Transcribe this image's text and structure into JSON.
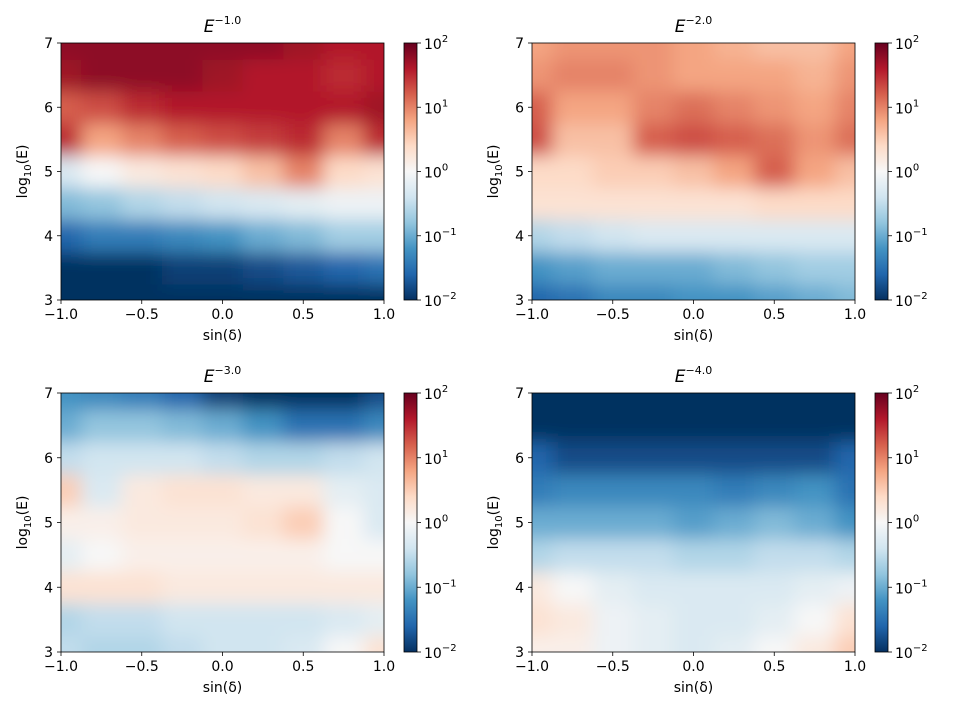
{
  "chart_data": [
    {
      "type": "heatmap",
      "title": {
        "base": "E",
        "exponent": "−1.0"
      },
      "xlabel": "sin(δ)",
      "ylabel": {
        "base": "log",
        "subscript": "10",
        "rest": "(E)"
      },
      "x": [
        -1,
        -0.75,
        -0.5,
        -0.25,
        0,
        0.25,
        0.5,
        0.75,
        1
      ],
      "y": [
        3,
        3.5,
        4,
        4.5,
        5,
        5.5,
        6,
        6.5,
        7
      ],
      "z": [
        [
          0.01,
          0.01,
          0.01,
          0.01,
          0.01,
          0.01,
          0.01,
          0.01,
          0.01
        ],
        [
          0.01,
          0.01,
          0.01,
          0.013,
          0.013,
          0.016,
          0.02,
          0.025,
          0.032
        ],
        [
          0.025,
          0.04,
          0.04,
          0.05,
          0.063,
          0.1,
          0.13,
          0.2,
          0.2
        ],
        [
          0.13,
          0.16,
          0.25,
          0.32,
          0.4,
          0.5,
          0.63,
          0.79,
          0.79
        ],
        [
          0.5,
          1,
          1.6,
          2,
          2.5,
          4,
          10,
          2.5,
          2
        ],
        [
          32,
          6.3,
          10,
          16,
          20,
          25,
          32,
          10,
          32
        ],
        [
          16,
          20,
          32,
          40,
          40,
          40,
          40,
          40,
          50
        ],
        [
          50,
          63,
          63,
          63,
          50,
          40,
          40,
          32,
          40
        ],
        [
          63,
          63,
          63,
          63,
          63,
          63,
          50,
          40,
          40
        ]
      ],
      "xlim": [
        -1,
        1
      ],
      "ylim": [
        3,
        7
      ],
      "xticks": [
        {
          "value": -1,
          "label": "−1.0"
        },
        {
          "value": -0.5,
          "label": "−0.5"
        },
        {
          "value": 0,
          "label": "0.0"
        },
        {
          "value": 0.5,
          "label": "0.5"
        },
        {
          "value": 1,
          "label": "1.0"
        }
      ],
      "yticks": [
        3,
        4,
        5,
        6,
        7
      ],
      "colorbar": {
        "lim": [
          0.01,
          100
        ],
        "log": true,
        "colormap": "RdBu_r",
        "ticks": [
          {
            "value": 0.01,
            "label": "10",
            "exponent": "−2"
          },
          {
            "value": 0.1,
            "label": "10",
            "exponent": "−1"
          },
          {
            "value": 1,
            "label": "10",
            "exponent": "0"
          },
          {
            "value": 10,
            "label": "10",
            "exponent": "1"
          },
          {
            "value": 100,
            "label": "10",
            "exponent": "2"
          }
        ]
      }
    },
    {
      "type": "heatmap",
      "title": {
        "base": "E",
        "exponent": "−2.0"
      },
      "xlabel": "sin(δ)",
      "ylabel": {
        "base": "log",
        "subscript": "10",
        "rest": "(E)"
      },
      "x": [
        -1,
        -0.75,
        -0.5,
        -0.25,
        0,
        0.25,
        0.5,
        0.75,
        1
      ],
      "y": [
        3,
        3.5,
        4,
        4.5,
        5,
        5.5,
        6,
        6.5,
        7
      ],
      "z": [
        [
          0.025,
          0.032,
          0.05,
          0.05,
          0.063,
          0.063,
          0.079,
          0.1,
          0.13
        ],
        [
          0.063,
          0.079,
          0.1,
          0.1,
          0.1,
          0.13,
          0.16,
          0.2,
          0.2
        ],
        [
          0.25,
          0.32,
          0.4,
          0.5,
          0.5,
          0.5,
          0.5,
          0.5,
          0.5
        ],
        [
          2,
          2,
          2,
          2,
          2,
          2,
          2.5,
          2.5,
          2.5
        ],
        [
          2.5,
          2.5,
          3.2,
          3.2,
          4,
          6.3,
          16,
          6.3,
          4
        ],
        [
          20,
          4,
          4,
          16,
          20,
          16,
          13,
          7.9,
          13
        ],
        [
          16,
          6.3,
          6.3,
          10,
          13,
          10,
          7.9,
          6.3,
          10
        ],
        [
          7.9,
          10,
          10,
          7.9,
          6.3,
          6.3,
          6.3,
          5,
          7.9
        ],
        [
          6.3,
          7.9,
          7.9,
          7.9,
          6.3,
          5,
          4,
          4,
          6.3
        ]
      ],
      "xlim": [
        -1,
        1
      ],
      "ylim": [
        3,
        7
      ],
      "xticks": [
        {
          "value": -1,
          "label": "−1.0"
        },
        {
          "value": -0.5,
          "label": "−0.5"
        },
        {
          "value": 0,
          "label": "0.0"
        },
        {
          "value": 0.5,
          "label": "0.5"
        },
        {
          "value": 1,
          "label": "1.0"
        }
      ],
      "yticks": [
        3,
        4,
        5,
        6,
        7
      ],
      "colorbar": {
        "lim": [
          0.01,
          100
        ],
        "log": true,
        "colormap": "RdBu_r",
        "ticks": [
          {
            "value": 0.01,
            "label": "10",
            "exponent": "−2"
          },
          {
            "value": 0.1,
            "label": "10",
            "exponent": "−1"
          },
          {
            "value": 1,
            "label": "10",
            "exponent": "0"
          },
          {
            "value": 10,
            "label": "10",
            "exponent": "1"
          },
          {
            "value": 100,
            "label": "10",
            "exponent": "2"
          }
        ]
      }
    },
    {
      "type": "heatmap",
      "title": {
        "base": "E",
        "exponent": "−3.0"
      },
      "xlabel": "sin(δ)",
      "ylabel": {
        "base": "log",
        "subscript": "10",
        "rest": "(E)"
      },
      "x": [
        -1,
        -0.75,
        -0.5,
        -0.25,
        0,
        0.25,
        0.5,
        0.75,
        1
      ],
      "y": [
        3,
        3.5,
        4,
        4.5,
        5,
        5.5,
        6,
        6.5,
        7
      ],
      "z": [
        [
          0.32,
          0.25,
          0.25,
          0.32,
          0.4,
          0.4,
          0.5,
          1,
          2
        ],
        [
          0.25,
          0.32,
          0.32,
          0.4,
          0.4,
          0.4,
          0.4,
          0.5,
          0.63
        ],
        [
          2,
          2,
          2,
          1.6,
          1.6,
          1.6,
          1.6,
          1.6,
          1.6
        ],
        [
          0.63,
          1,
          1.3,
          1.3,
          1.3,
          1.3,
          1.3,
          1,
          1
        ],
        [
          1.3,
          1.3,
          1.6,
          1.6,
          1.6,
          2,
          3.2,
          1,
          0.5
        ],
        [
          3.2,
          0.5,
          1.6,
          2,
          2,
          1.6,
          1.6,
          0.63,
          0.5
        ],
        [
          0.32,
          0.4,
          0.4,
          0.4,
          0.32,
          0.25,
          0.25,
          0.32,
          0.4
        ],
        [
          0.1,
          0.16,
          0.16,
          0.13,
          0.1,
          0.063,
          0.032,
          0.032,
          0.05
        ],
        [
          0.063,
          0.05,
          0.04,
          0.025,
          0.013,
          0.01,
          0.01,
          0.01,
          0.016
        ]
      ],
      "xlim": [
        -1,
        1
      ],
      "ylim": [
        3,
        7
      ],
      "xticks": [
        {
          "value": -1,
          "label": "−1.0"
        },
        {
          "value": -0.5,
          "label": "−0.5"
        },
        {
          "value": 0,
          "label": "0.0"
        },
        {
          "value": 0.5,
          "label": "0.5"
        },
        {
          "value": 1,
          "label": "1.0"
        }
      ],
      "yticks": [
        3,
        4,
        5,
        6,
        7
      ],
      "colorbar": {
        "lim": [
          0.01,
          100
        ],
        "log": true,
        "colormap": "RdBu_r",
        "ticks": [
          {
            "value": 0.01,
            "label": "10",
            "exponent": "−2"
          },
          {
            "value": 0.1,
            "label": "10",
            "exponent": "−1"
          },
          {
            "value": 1,
            "label": "10",
            "exponent": "0"
          },
          {
            "value": 10,
            "label": "10",
            "exponent": "1"
          },
          {
            "value": 100,
            "label": "10",
            "exponent": "2"
          }
        ]
      }
    },
    {
      "type": "heatmap",
      "title": {
        "base": "E",
        "exponent": "−4.0"
      },
      "xlabel": "sin(δ)",
      "ylabel": {
        "base": "log",
        "subscript": "10",
        "rest": "(E)"
      },
      "x": [
        -1,
        -0.75,
        -0.5,
        -0.25,
        0,
        0.25,
        0.5,
        0.75,
        1
      ],
      "y": [
        3,
        3.5,
        4,
        4.5,
        5,
        5.5,
        6,
        6.5,
        7
      ],
      "z": [
        [
          1.3,
          1.3,
          0.79,
          0.63,
          0.5,
          0.63,
          1,
          1.6,
          3.2
        ],
        [
          2,
          1.6,
          0.79,
          0.63,
          0.5,
          0.5,
          0.63,
          1,
          2
        ],
        [
          1.6,
          1,
          0.63,
          0.5,
          0.5,
          0.5,
          0.5,
          0.63,
          0.79
        ],
        [
          0.25,
          0.32,
          0.32,
          0.32,
          0.25,
          0.25,
          0.32,
          0.32,
          0.25
        ],
        [
          0.1,
          0.1,
          0.1,
          0.1,
          0.079,
          0.1,
          0.13,
          0.1,
          0.063
        ],
        [
          0.04,
          0.05,
          0.05,
          0.05,
          0.05,
          0.04,
          0.05,
          0.063,
          0.032
        ],
        [
          0.025,
          0.016,
          0.016,
          0.016,
          0.016,
          0.016,
          0.016,
          0.016,
          0.025
        ],
        [
          0.01,
          0.01,
          0.01,
          0.01,
          0.01,
          0.01,
          0.01,
          0.01,
          0.01
        ],
        [
          0.01,
          0.01,
          0.01,
          0.01,
          0.01,
          0.01,
          0.01,
          0.01,
          0.01
        ]
      ],
      "xlim": [
        -1,
        1
      ],
      "ylim": [
        3,
        7
      ],
      "xticks": [
        {
          "value": -1,
          "label": "−1.0"
        },
        {
          "value": -0.5,
          "label": "−0.5"
        },
        {
          "value": 0,
          "label": "0.0"
        },
        {
          "value": 0.5,
          "label": "0.5"
        },
        {
          "value": 1,
          "label": "1.0"
        }
      ],
      "yticks": [
        3,
        4,
        5,
        6,
        7
      ],
      "colorbar": {
        "lim": [
          0.01,
          100
        ],
        "log": true,
        "colormap": "RdBu_r",
        "ticks": [
          {
            "value": 0.01,
            "label": "10",
            "exponent": "−2"
          },
          {
            "value": 0.1,
            "label": "10",
            "exponent": "−1"
          },
          {
            "value": 1,
            "label": "10",
            "exponent": "0"
          },
          {
            "value": 10,
            "label": "10",
            "exponent": "1"
          },
          {
            "value": 100,
            "label": "10",
            "exponent": "2"
          }
        ]
      }
    }
  ]
}
